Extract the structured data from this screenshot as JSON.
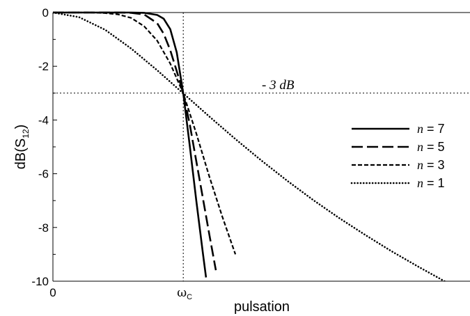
{
  "chart_data": {
    "type": "line",
    "xlabel": "pulsation",
    "ylabel": "dB(S12)",
    "ylabel_parts": {
      "main": "dB(S",
      "sub": "12",
      "close": ")"
    },
    "ylim": [
      -10,
      0
    ],
    "xlim": [
      0,
      3.2
    ],
    "yticks": [
      0,
      -2,
      -4,
      -6,
      -8,
      -10
    ],
    "ytick_labels": [
      "0",
      "-2",
      "-4",
      "-6",
      "-8",
      "-10"
    ],
    "xtick_labels": [
      {
        "x": 0,
        "label": "0"
      },
      {
        "x": 1,
        "label": "ω",
        "sub": "C"
      }
    ],
    "reference_lines": [
      {
        "axis": "y",
        "value": -3,
        "style": "dotted",
        "label": "- 3 dB"
      },
      {
        "axis": "x",
        "value": 1,
        "style": "dotted"
      }
    ],
    "legend_position": "right",
    "series": [
      {
        "name_var": "n",
        "name_rest": " = 7",
        "n": 7,
        "style": "solid",
        "x": [
          0,
          0.5,
          0.6,
          0.7,
          0.8,
          0.85,
          0.9,
          0.95,
          1.0,
          1.05,
          1.1,
          1.15,
          1.175
        ],
        "y": [
          0,
          0,
          0,
          -0.01,
          -0.09,
          -0.23,
          -0.62,
          -1.48,
          -3.01,
          -4.95,
          -7.0,
          -8.94,
          -9.86
        ]
      },
      {
        "name_var": "n",
        "name_rest": " = 5",
        "n": 5,
        "style": "long-dash",
        "x": [
          0,
          0.5,
          0.6,
          0.7,
          0.8,
          0.85,
          0.9,
          0.95,
          1.0,
          1.05,
          1.1,
          1.15,
          1.2,
          1.25
        ],
        "y": [
          0,
          0,
          -0.01,
          -0.07,
          -0.4,
          -0.79,
          -1.4,
          -2.18,
          -3.01,
          -4.16,
          -5.53,
          -6.9,
          -8.26,
          -9.59
        ]
      },
      {
        "name_var": "n",
        "name_rest": " = 3",
        "n": 3,
        "style": "short-dash",
        "x": [
          0,
          0.3,
          0.4,
          0.5,
          0.6,
          0.7,
          0.8,
          0.9,
          1.0,
          1.1,
          1.2,
          1.3,
          1.4
        ],
        "y": [
          0,
          0,
          -0.02,
          -0.07,
          -0.2,
          -0.51,
          -1.05,
          -1.9,
          -3.01,
          -4.5,
          -6.1,
          -7.6,
          -9.0
        ]
      },
      {
        "name_var": "n",
        "name_rest": " = 1",
        "n": 1,
        "style": "dotted",
        "x": [
          0,
          0.2,
          0.4,
          0.6,
          0.8,
          1.0,
          1.2,
          1.4,
          1.6,
          1.8,
          2.0,
          2.2,
          2.4,
          2.6,
          2.8,
          3.0,
          3.2
        ],
        "y": [
          0,
          -0.17,
          -0.64,
          -1.34,
          -2.15,
          -3.01,
          -3.87,
          -4.71,
          -5.51,
          -6.27,
          -6.99,
          -7.66,
          -8.29,
          -8.89,
          -9.45,
          -9.99,
          -10.5
        ]
      }
    ]
  }
}
